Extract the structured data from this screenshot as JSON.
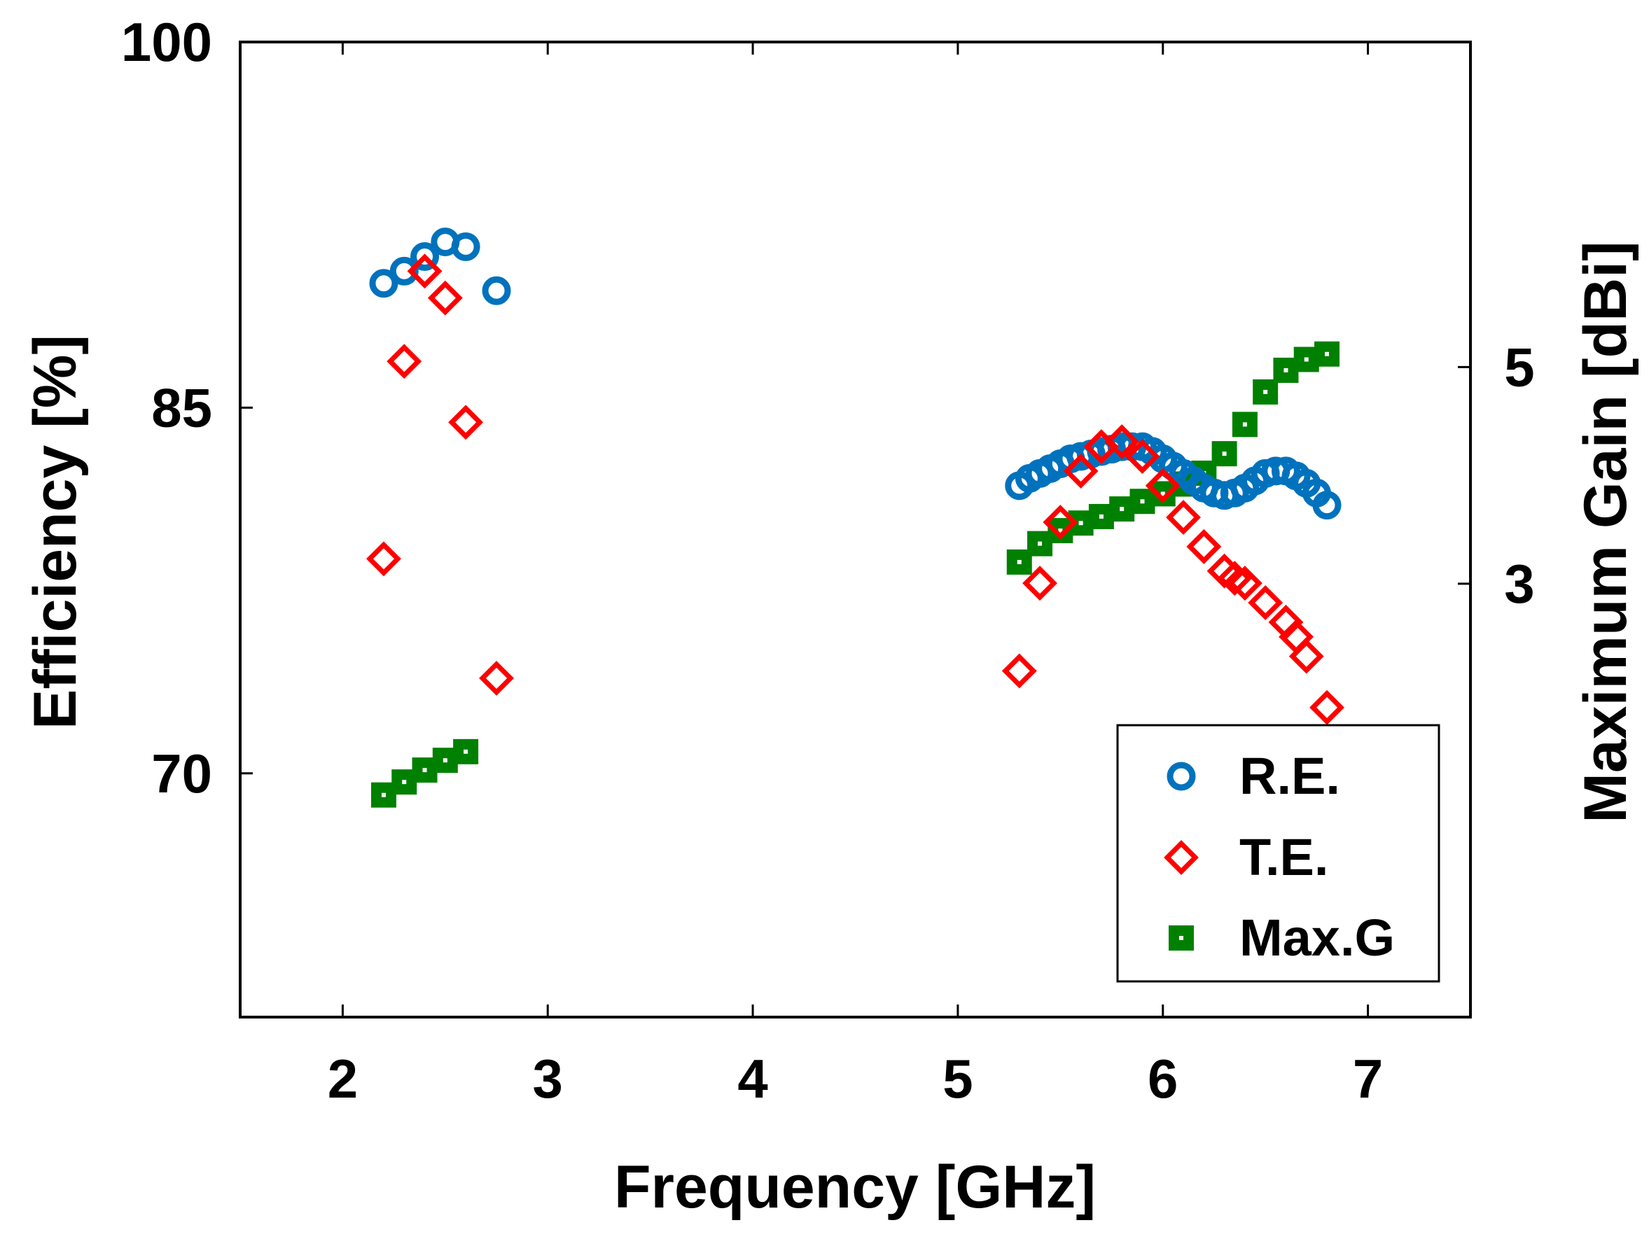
{
  "chart_data": {
    "type": "scatter",
    "title": "",
    "xlabel": "Frequency [GHz]",
    "ylabel_left": "Efficiency [%]",
    "ylabel_right": "Maximum Gain [dBi]",
    "xlim": [
      1.5,
      7.5
    ],
    "ylim_left": [
      60,
      100
    ],
    "ylim_right": [
      -1,
      8
    ],
    "xticks": [
      2,
      3,
      4,
      5,
      6,
      7
    ],
    "yticks_left": [
      70,
      85,
      100
    ],
    "yticks_right": [
      3,
      5
    ],
    "legend_position": "bottom-right",
    "colors": {
      "re": "#0072BD",
      "te": "#FF0000",
      "maxg": "#008000"
    },
    "series": [
      {
        "name": "R.E.",
        "axis": "left",
        "marker": "circle",
        "color": "#0072BD",
        "x": [
          2.2,
          2.3,
          2.4,
          2.5,
          2.6,
          2.75,
          5.3,
          5.35,
          5.4,
          5.45,
          5.5,
          5.55,
          5.6,
          5.65,
          5.7,
          5.75,
          5.8,
          5.85,
          5.9,
          5.95,
          6.0,
          6.05,
          6.1,
          6.15,
          6.2,
          6.25,
          6.3,
          6.35,
          6.4,
          6.45,
          6.5,
          6.55,
          6.6,
          6.65,
          6.7,
          6.75,
          6.8
        ],
        "y": [
          90.1,
          90.6,
          91.2,
          91.8,
          91.6,
          89.8,
          81.8,
          82.1,
          82.3,
          82.5,
          82.7,
          82.9,
          83.0,
          83.1,
          83.2,
          83.3,
          83.4,
          83.4,
          83.4,
          83.2,
          82.9,
          82.6,
          82.3,
          82.0,
          81.7,
          81.5,
          81.4,
          81.5,
          81.7,
          82.0,
          82.3,
          82.4,
          82.4,
          82.2,
          81.9,
          81.5,
          81.0
        ]
      },
      {
        "name": "T.E.",
        "axis": "left",
        "marker": "diamond",
        "color": "#FF0000",
        "x": [
          2.2,
          2.3,
          2.4,
          2.5,
          2.6,
          2.75,
          5.3,
          5.4,
          5.5,
          5.6,
          5.7,
          5.8,
          5.9,
          6.0,
          6.1,
          6.2,
          6.3,
          6.35,
          6.4,
          6.5,
          6.6,
          6.65,
          6.7,
          6.8
        ],
        "y": [
          78.8,
          86.9,
          90.6,
          89.5,
          84.4,
          73.9,
          74.2,
          77.8,
          80.3,
          82.4,
          83.4,
          83.6,
          83.0,
          81.8,
          80.5,
          79.3,
          78.3,
          78.0,
          77.8,
          77.0,
          76.2,
          75.6,
          74.8,
          72.7
        ]
      },
      {
        "name": "Max.G",
        "axis": "right",
        "marker": "square",
        "color": "#008000",
        "x": [
          2.2,
          2.3,
          2.4,
          2.5,
          2.6,
          5.3,
          5.4,
          5.5,
          5.6,
          5.7,
          5.8,
          5.9,
          6.0,
          6.1,
          6.2,
          6.3,
          6.4,
          6.5,
          6.6,
          6.7,
          6.8
        ],
        "y": [
          1.05,
          1.17,
          1.28,
          1.37,
          1.45,
          3.2,
          3.37,
          3.49,
          3.56,
          3.62,
          3.69,
          3.76,
          3.83,
          3.92,
          4.02,
          4.2,
          4.47,
          4.77,
          4.97,
          5.07,
          5.12
        ]
      }
    ]
  }
}
